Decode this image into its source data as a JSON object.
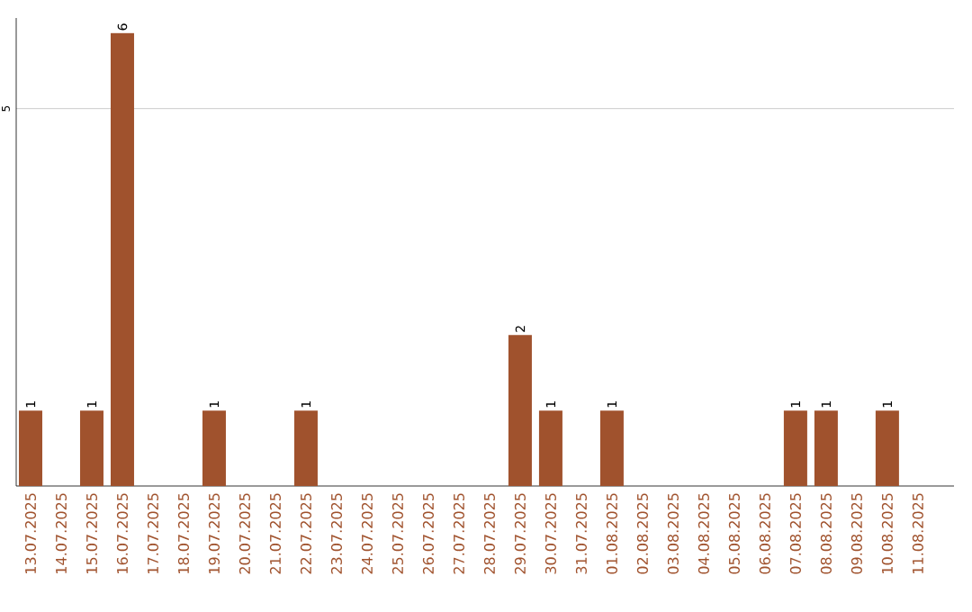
{
  "chart_data": {
    "type": "bar",
    "categories": [
      "13.07.2025",
      "14.07.2025",
      "15.07.2025",
      "16.07.2025",
      "17.07.2025",
      "18.07.2025",
      "19.07.2025",
      "20.07.2025",
      "21.07.2025",
      "22.07.2025",
      "23.07.2025",
      "24.07.2025",
      "25.07.2025",
      "26.07.2025",
      "27.07.2025",
      "28.07.2025",
      "29.07.2025",
      "30.07.2025",
      "31.07.2025",
      "01.08.2025",
      "02.08.2025",
      "03.08.2025",
      "04.08.2025",
      "05.08.2025",
      "06.08.2025",
      "07.08.2025",
      "08.08.2025",
      "09.08.2025",
      "10.08.2025",
      "11.08.2025"
    ],
    "values": [
      1,
      0,
      1,
      6,
      0,
      0,
      1,
      0,
      0,
      1,
      0,
      0,
      0,
      0,
      0,
      0,
      2,
      1,
      0,
      1,
      0,
      0,
      0,
      0,
      0,
      1,
      1,
      0,
      1,
      0
    ],
    "color": "#a0522d",
    "ylim": [
      0,
      6.2
    ],
    "yticks": [
      5
    ],
    "grid": "y",
    "value_labels": [
      "1",
      null,
      "1",
      "6",
      null,
      null,
      "1",
      null,
      null,
      "1",
      null,
      null,
      null,
      null,
      null,
      null,
      "2",
      "1",
      null,
      "1",
      null,
      null,
      null,
      null,
      null,
      "1",
      "1",
      null,
      "1",
      null
    ]
  }
}
